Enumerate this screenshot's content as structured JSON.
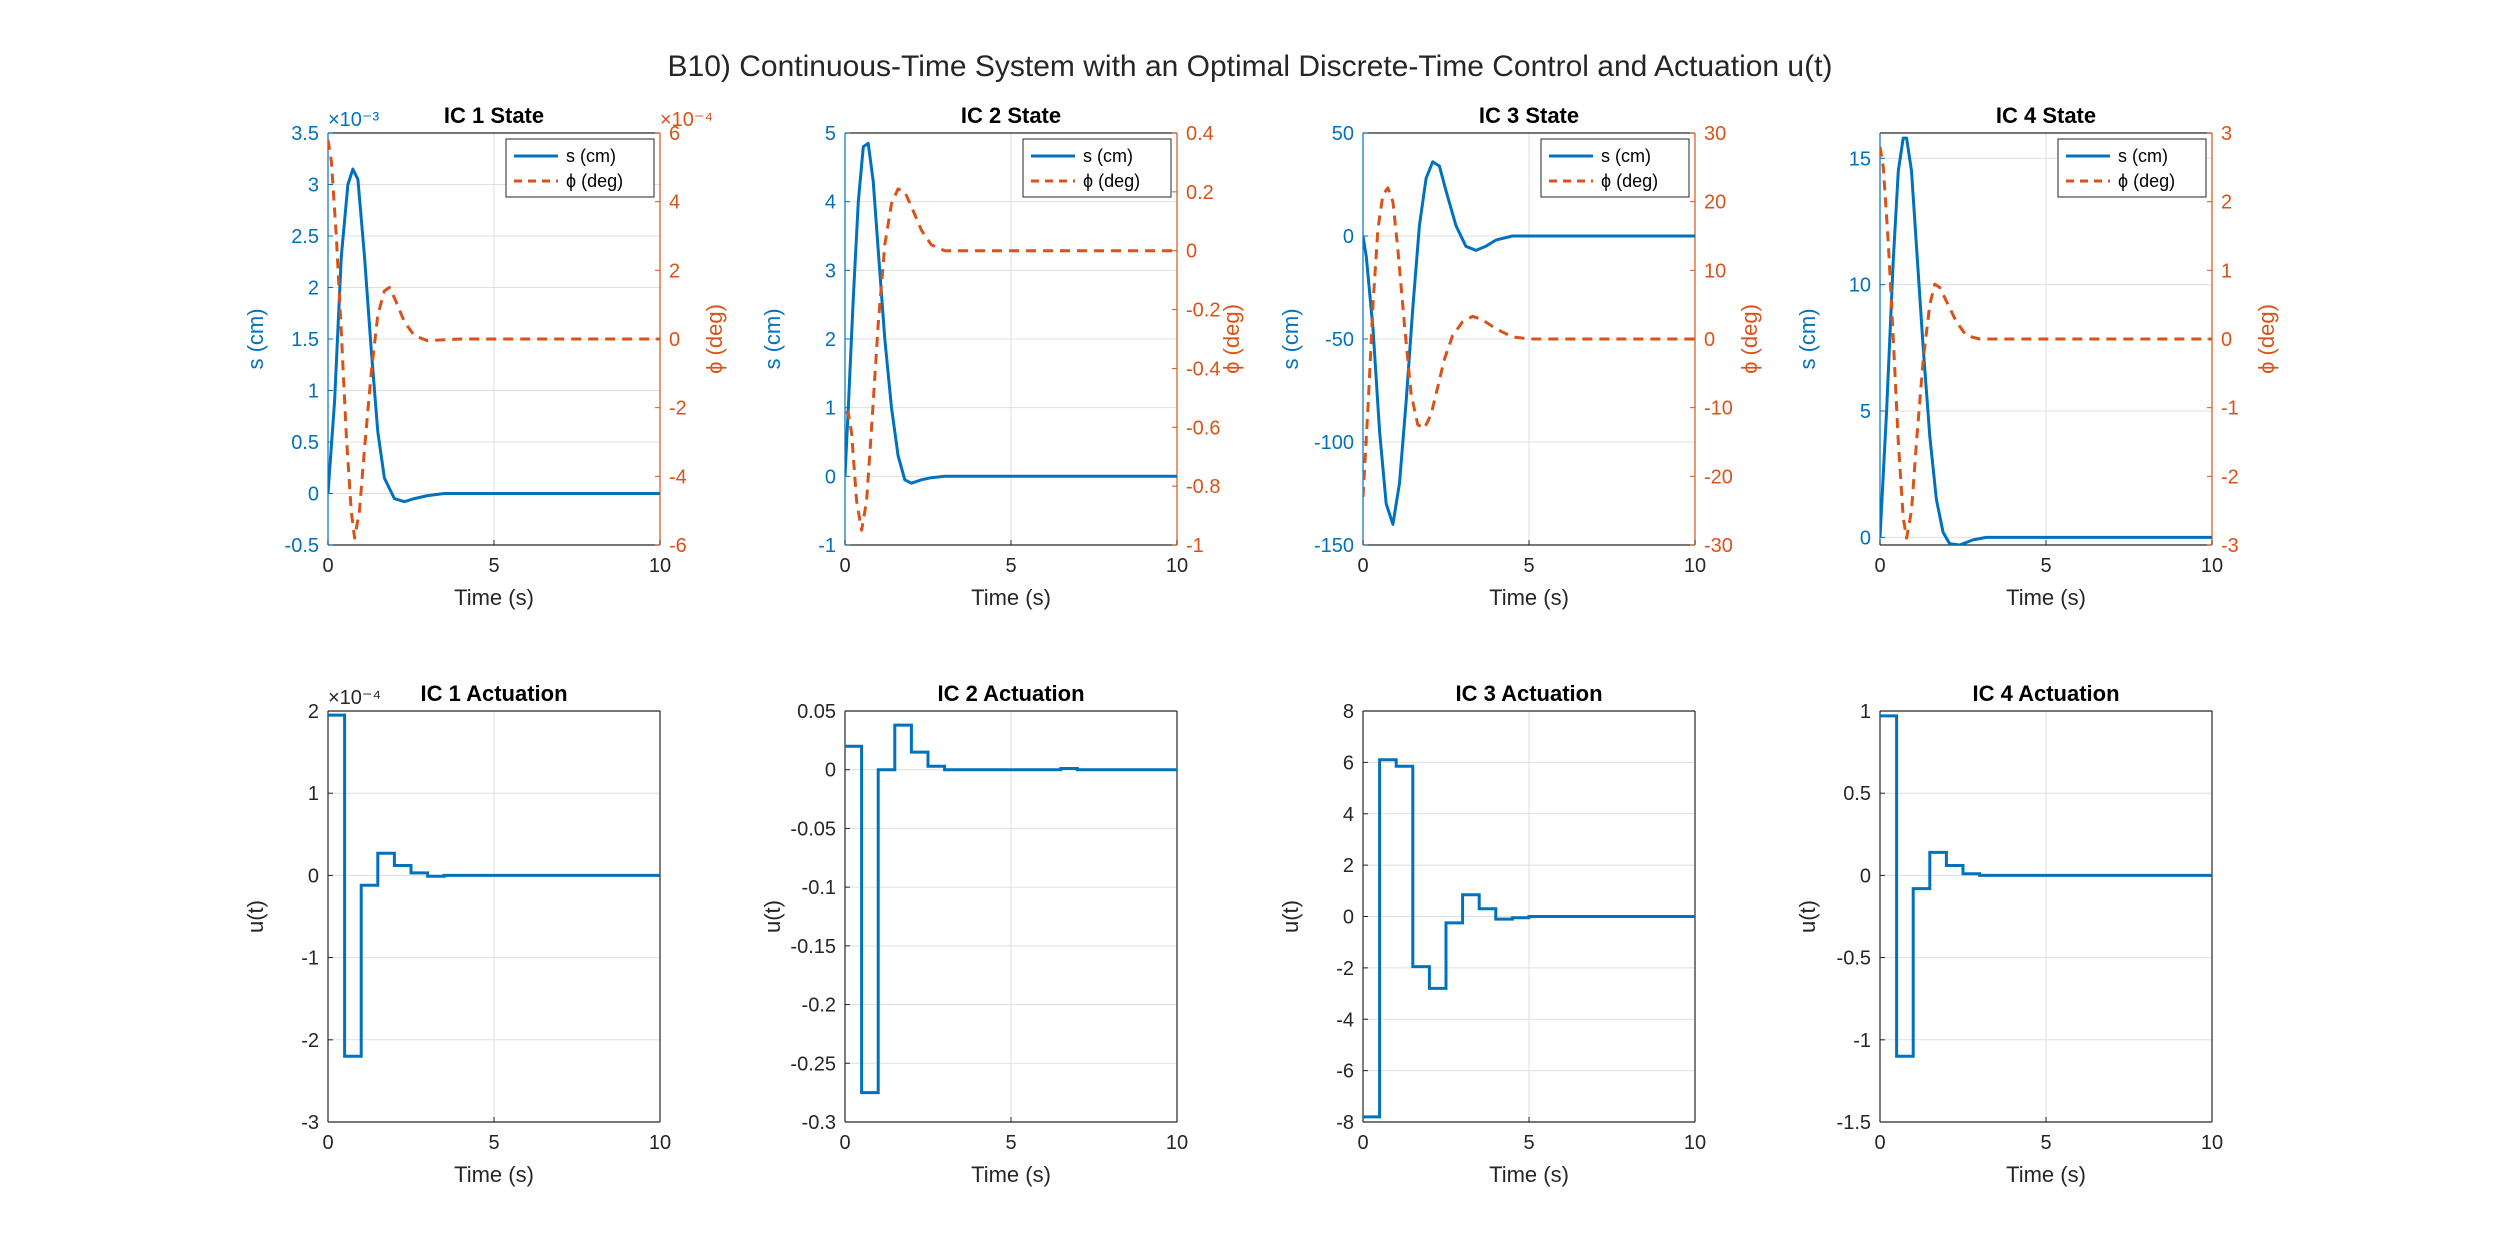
{
  "figure": {
    "suptitle": "B10) Continuous-Time System with an Optimal Discrete-Time Control and Actuation u(t)",
    "colors": {
      "s": "#0072BD",
      "phi": "#D95319",
      "axis": "#262626",
      "grid": "#dfdfdf"
    },
    "legend": {
      "s_label": "s (cm)",
      "phi_label": "ϕ (deg)"
    },
    "x_label": "Time (s)",
    "y_label_s": "s (cm)",
    "y_label_phi": "ϕ (deg)",
    "y_label_u": "u(t)"
  },
  "chart_data": [
    {
      "type": "line",
      "title": "IC 1 State",
      "xlabel": "Time (s)",
      "xlim": [
        0,
        10
      ],
      "xticks": [
        0,
        5,
        10
      ],
      "grid": true,
      "legend": "top-right",
      "left": {
        "ylabel": "s (cm)",
        "ylim": [
          -0.5,
          3.5
        ],
        "yticks": [
          -0.5,
          0,
          0.5,
          1,
          1.5,
          2,
          2.5,
          3,
          3.5
        ],
        "exponent": "×10⁻³"
      },
      "right": {
        "ylabel": "ϕ (deg)",
        "ylim": [
          -6,
          6
        ],
        "yticks": [
          -6,
          -4,
          -2,
          0,
          2,
          4,
          6
        ],
        "exponent": "×10⁻⁴"
      },
      "series": [
        {
          "name": "s (cm)",
          "axis": "left",
          "style": "solid",
          "x": [
            0,
            0.2,
            0.4,
            0.6,
            0.75,
            0.9,
            1.1,
            1.3,
            1.5,
            1.7,
            2.0,
            2.3,
            2.6,
            3.0,
            3.5,
            4,
            5,
            10
          ],
          "y": [
            0,
            0.9,
            2.3,
            3.0,
            3.15,
            3.05,
            2.3,
            1.4,
            0.6,
            0.15,
            -0.05,
            -0.08,
            -0.05,
            -0.02,
            0,
            0,
            0,
            0
          ]
        },
        {
          "name": "ϕ (deg)",
          "axis": "right",
          "style": "dashed",
          "x": [
            0,
            0.1,
            0.25,
            0.4,
            0.55,
            0.7,
            0.8,
            0.95,
            1.1,
            1.3,
            1.5,
            1.7,
            1.85,
            2.0,
            2.3,
            2.6,
            3.0,
            3.5,
            4,
            5,
            10
          ],
          "y": [
            5.8,
            5.2,
            3.0,
            0.2,
            -2.8,
            -5.0,
            -5.8,
            -5.0,
            -3.2,
            -1.0,
            0.7,
            1.4,
            1.5,
            1.2,
            0.5,
            0.1,
            -0.05,
            -0.02,
            0,
            0,
            0
          ]
        }
      ]
    },
    {
      "type": "line",
      "title": "IC 2 State",
      "xlabel": "Time (s)",
      "xlim": [
        0,
        10
      ],
      "xticks": [
        0,
        5,
        10
      ],
      "grid": true,
      "legend": "top-right",
      "left": {
        "ylabel": "s (cm)",
        "ylim": [
          -1,
          5
        ],
        "yticks": [
          -1,
          0,
          1,
          2,
          3,
          4,
          5
        ],
        "exponent": ""
      },
      "right": {
        "ylabel": "ϕ (deg)",
        "ylim": [
          -1,
          0.4
        ],
        "yticks": [
          -1,
          -0.8,
          -0.6,
          -0.4,
          -0.2,
          0,
          0.2,
          0.4
        ],
        "exponent": ""
      },
      "series": [
        {
          "name": "s (cm)",
          "axis": "left",
          "style": "solid",
          "x": [
            0,
            0.1,
            0.25,
            0.4,
            0.55,
            0.7,
            0.85,
            1.0,
            1.2,
            1.4,
            1.6,
            1.8,
            2.0,
            2.3,
            2.6,
            3.0,
            4,
            5,
            10
          ],
          "y": [
            0,
            1.0,
            2.6,
            4.0,
            4.8,
            4.85,
            4.3,
            3.3,
            2.0,
            1.0,
            0.3,
            -0.05,
            -0.1,
            -0.05,
            -0.02,
            0,
            0,
            0,
            0
          ]
        },
        {
          "name": "ϕ (deg)",
          "axis": "right",
          "style": "dashed",
          "x": [
            0,
            0.1,
            0.2,
            0.35,
            0.5,
            0.65,
            0.8,
            1.0,
            1.2,
            1.4,
            1.6,
            1.8,
            2.0,
            2.3,
            2.6,
            3.0,
            3.5,
            4,
            5,
            10
          ],
          "y": [
            -0.55,
            -0.55,
            -0.62,
            -0.85,
            -0.95,
            -0.85,
            -0.6,
            -0.25,
            0.02,
            0.16,
            0.21,
            0.2,
            0.15,
            0.07,
            0.02,
            0,
            0,
            0,
            0,
            0
          ]
        }
      ]
    },
    {
      "type": "line",
      "title": "IC 3 State",
      "xlabel": "Time (s)",
      "xlim": [
        0,
        10
      ],
      "xticks": [
        0,
        5,
        10
      ],
      "grid": true,
      "legend": "top-right",
      "left": {
        "ylabel": "s (cm)",
        "ylim": [
          -150,
          50
        ],
        "yticks": [
          -150,
          -100,
          -50,
          0,
          50
        ],
        "exponent": ""
      },
      "right": {
        "ylabel": "ϕ (deg)",
        "ylim": [
          -30,
          30
        ],
        "yticks": [
          -30,
          -20,
          -10,
          0,
          10,
          20,
          30
        ],
        "exponent": ""
      },
      "series": [
        {
          "name": "s (cm)",
          "axis": "left",
          "style": "solid",
          "x": [
            0,
            0.1,
            0.3,
            0.5,
            0.7,
            0.9,
            1.1,
            1.3,
            1.5,
            1.7,
            1.9,
            2.1,
            2.3,
            2.5,
            2.8,
            3.1,
            3.4,
            3.7,
            4.0,
            4.5,
            5,
            6,
            10
          ],
          "y": [
            0,
            -10,
            -45,
            -95,
            -130,
            -140,
            -120,
            -80,
            -35,
            5,
            28,
            36,
            34,
            22,
            5,
            -5,
            -7,
            -5,
            -2,
            0,
            0,
            0,
            0
          ]
        },
        {
          "name": "ϕ (deg)",
          "axis": "right",
          "style": "dashed",
          "x": [
            0,
            0.15,
            0.3,
            0.45,
            0.6,
            0.75,
            0.9,
            1.05,
            1.25,
            1.45,
            1.65,
            1.85,
            2.05,
            2.25,
            2.45,
            2.7,
            3.0,
            3.3,
            3.6,
            4.0,
            4.5,
            5,
            6,
            10
          ],
          "y": [
            -23,
            -10,
            5,
            16,
            21,
            22,
            20,
            13,
            2,
            -8,
            -12.5,
            -13,
            -11,
            -7,
            -3,
            0.5,
            2.5,
            3.3,
            2.8,
            1.5,
            0.3,
            0,
            0,
            0
          ]
        }
      ]
    },
    {
      "type": "line",
      "title": "IC 4 State",
      "xlabel": "Time (s)",
      "xlim": [
        0,
        10
      ],
      "xticks": [
        0,
        5,
        10
      ],
      "grid": true,
      "legend": "top-right",
      "left": {
        "ylabel": "s (cm)",
        "ylim": [
          -0.3,
          16
        ],
        "yticks": [
          0,
          5,
          10,
          15
        ],
        "exponent": ""
      },
      "right": {
        "ylabel": "ϕ (deg)",
        "ylim": [
          -3,
          3
        ],
        "yticks": [
          -3,
          -2,
          -1,
          0,
          1,
          2,
          3
        ],
        "exponent": ""
      },
      "series": [
        {
          "name": "s (cm)",
          "axis": "left",
          "style": "solid",
          "x": [
            0,
            0.2,
            0.4,
            0.55,
            0.7,
            0.8,
            0.95,
            1.1,
            1.3,
            1.5,
            1.7,
            1.9,
            2.1,
            2.4,
            2.8,
            3.2,
            4,
            5,
            10
          ],
          "y": [
            0,
            5,
            11,
            14.5,
            15.8,
            15.8,
            14.5,
            11.5,
            7.5,
            4.0,
            1.5,
            0.2,
            -0.25,
            -0.3,
            -0.1,
            0,
            0,
            0,
            0
          ]
        },
        {
          "name": "ϕ (deg)",
          "axis": "right",
          "style": "dashed",
          "x": [
            0,
            0.1,
            0.25,
            0.4,
            0.55,
            0.7,
            0.8,
            0.95,
            1.1,
            1.3,
            1.5,
            1.65,
            1.8,
            2.0,
            2.3,
            2.6,
            3.0,
            3.5,
            4,
            5,
            10
          ],
          "y": [
            2.8,
            2.5,
            1.4,
            0,
            -1.5,
            -2.6,
            -2.9,
            -2.5,
            -1.5,
            -0.3,
            0.5,
            0.8,
            0.75,
            0.55,
            0.25,
            0.05,
            0,
            0,
            0,
            0,
            0
          ]
        }
      ]
    },
    {
      "type": "line",
      "title": "IC 1 Actuation",
      "xlabel": "Time (s)",
      "ylabel": "u(t)",
      "xlim": [
        0,
        10
      ],
      "xticks": [
        0,
        5,
        10
      ],
      "grid": true,
      "ylim": [
        -3,
        2
      ],
      "yticks": [
        -3,
        -2,
        -1,
        0,
        1,
        2
      ],
      "exponent": "×10⁻⁴",
      "series": [
        {
          "name": "u(t)",
          "style": "stairs",
          "step": 0.5,
          "values": [
            1.95,
            -2.2,
            -0.12,
            0.27,
            0.12,
            0.03,
            -0.01,
            0,
            0,
            0,
            0,
            0,
            0,
            0,
            0,
            0,
            0,
            0,
            0,
            0
          ]
        }
      ]
    },
    {
      "type": "line",
      "title": "IC 2 Actuation",
      "xlabel": "Time (s)",
      "ylabel": "u(t)",
      "xlim": [
        0,
        10
      ],
      "xticks": [
        0,
        5,
        10
      ],
      "grid": true,
      "ylim": [
        -0.3,
        0.05
      ],
      "yticks": [
        -0.3,
        -0.25,
        -0.2,
        -0.15,
        -0.1,
        -0.05,
        0,
        0.05
      ],
      "exponent": "",
      "series": [
        {
          "name": "u(t)",
          "style": "stairs",
          "step": 0.5,
          "values": [
            0.02,
            -0.275,
            0,
            0.038,
            0.015,
            0.003,
            0,
            0,
            0,
            0,
            0,
            0,
            0,
            0.001,
            0,
            0,
            0,
            0,
            0,
            0
          ]
        }
      ]
    },
    {
      "type": "line",
      "title": "IC 3 Actuation",
      "xlabel": "Time (s)",
      "ylabel": "u(t)",
      "xlim": [
        0,
        10
      ],
      "xticks": [
        0,
        5,
        10
      ],
      "grid": true,
      "ylim": [
        -8,
        8
      ],
      "yticks": [
        -8,
        -6,
        -4,
        -2,
        0,
        2,
        4,
        6,
        8
      ],
      "exponent": "",
      "series": [
        {
          "name": "u(t)",
          "style": "stairs",
          "step": 0.5,
          "values": [
            -7.8,
            6.1,
            5.85,
            -1.95,
            -2.8,
            -0.25,
            0.85,
            0.3,
            -0.1,
            -0.05,
            0,
            0,
            0,
            0,
            0,
            0,
            0,
            0,
            0,
            0
          ]
        }
      ]
    },
    {
      "type": "line",
      "title": "IC 4 Actuation",
      "xlabel": "Time (s)",
      "ylabel": "u(t)",
      "xlim": [
        0,
        10
      ],
      "xticks": [
        0,
        5,
        10
      ],
      "grid": true,
      "ylim": [
        -1.5,
        1
      ],
      "yticks": [
        -1.5,
        -1,
        -0.5,
        0,
        0.5,
        1
      ],
      "exponent": "",
      "series": [
        {
          "name": "u(t)",
          "style": "stairs",
          "step": 0.5,
          "values": [
            0.97,
            -1.1,
            -0.08,
            0.14,
            0.06,
            0.01,
            0,
            0,
            0,
            0,
            0,
            0,
            0,
            0,
            0,
            0,
            0,
            0,
            0,
            0
          ]
        }
      ]
    }
  ]
}
